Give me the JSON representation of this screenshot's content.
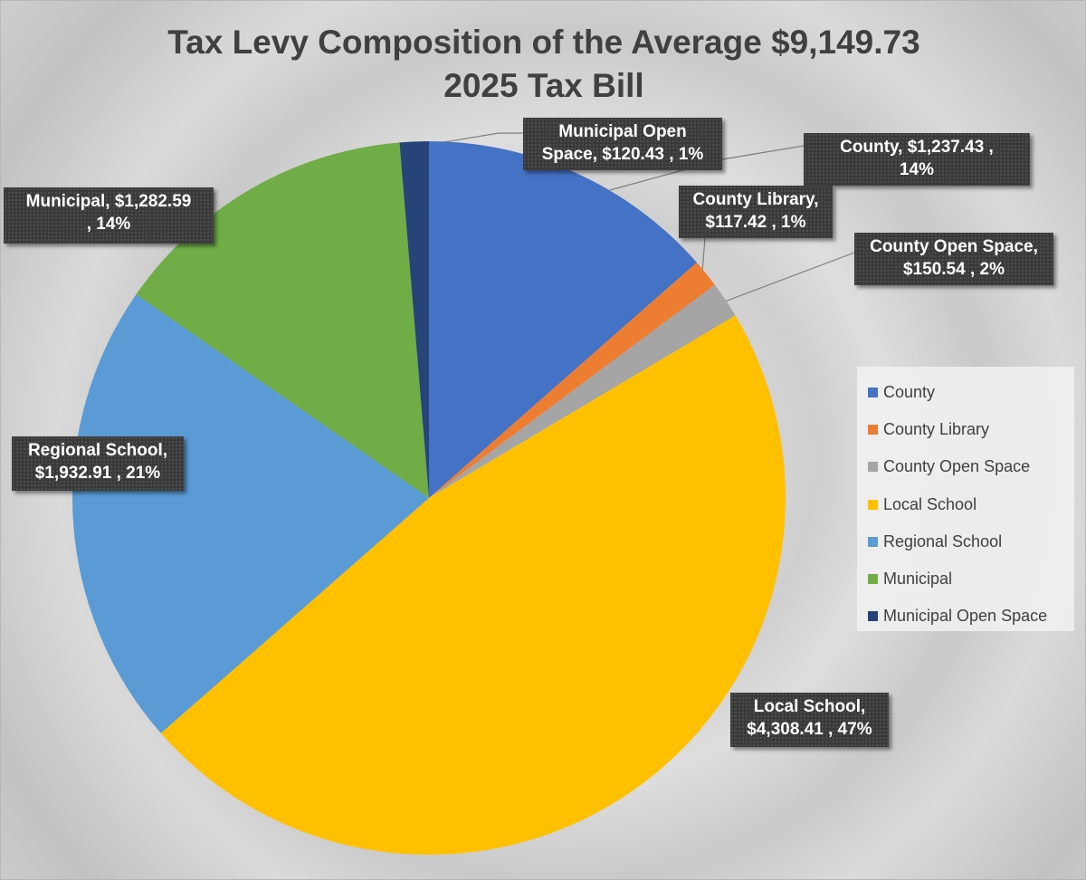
{
  "chart_data": {
    "type": "pie",
    "title_lines": [
      "Tax Levy Composition of the Average $9,149.73",
      "2025 Tax Bill"
    ],
    "slices": [
      {
        "name": "County",
        "value": 1237.43,
        "percent": 14,
        "label_lines": [
          "County,  $1,237.43 ,",
          "14%"
        ],
        "color": "#4472c4"
      },
      {
        "name": "County Library",
        "value": 117.42,
        "percent": 1,
        "label_lines": [
          "County Library,",
          "$117.42 , 1%"
        ],
        "color": "#ed7d31"
      },
      {
        "name": "County Open Space",
        "value": 150.54,
        "percent": 2,
        "label_lines": [
          "County Open Space,",
          "$150.54 , 2%"
        ],
        "color": "#a5a5a5"
      },
      {
        "name": "Local School",
        "value": 4308.41,
        "percent": 47,
        "label_lines": [
          "Local School,",
          "$4,308.41 , 47%"
        ],
        "color": "#ffc000"
      },
      {
        "name": "Regional School",
        "value": 1932.91,
        "percent": 21,
        "label_lines": [
          "Regional School,",
          "$1,932.91 , 21%"
        ],
        "color": "#5b9bd5"
      },
      {
        "name": "Municipal",
        "value": 1282.59,
        "percent": 14,
        "label_lines": [
          "Municipal,  $1,282.59",
          ", 14%"
        ],
        "color": "#70ad47"
      },
      {
        "name": "Municipal Open Space",
        "value": 120.43,
        "percent": 1,
        "label_lines": [
          "Municipal Open",
          "Space,  $120.43 , 1%"
        ],
        "color": "#264478"
      }
    ],
    "legend_position": "right"
  }
}
